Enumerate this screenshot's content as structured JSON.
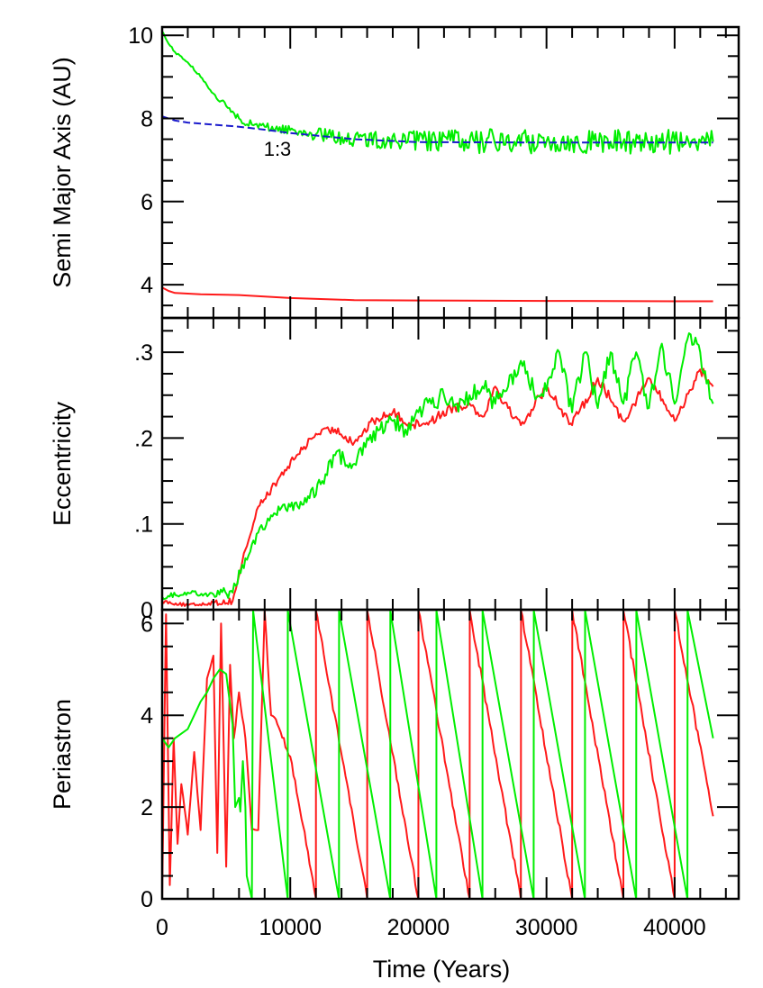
{
  "chart_data": [
    {
      "type": "line",
      "ylabel": "Semi Major Axis (AU)",
      "xlim": [
        0,
        45000
      ],
      "ylim": [
        3.2,
        10.2
      ],
      "yticks": [
        4,
        6,
        8,
        10
      ],
      "ytick_labels": [
        "4",
        "6",
        "8",
        "10"
      ],
      "annotations": [
        {
          "text": "1:3",
          "x": 9000,
          "y": 7.1,
          "color": "#1515cc"
        }
      ],
      "series": [
        {
          "color": "#ff1a1a",
          "style": "solid",
          "x": [
            0,
            500,
            1000,
            3000,
            6000,
            10000,
            15000,
            20000,
            30000,
            40000,
            43000
          ],
          "y": [
            3.93,
            3.85,
            3.8,
            3.77,
            3.75,
            3.68,
            3.63,
            3.62,
            3.61,
            3.6,
            3.6
          ]
        },
        {
          "color": "#00ee00",
          "style": "solid",
          "x": [
            0,
            500,
            1000,
            2000,
            3000,
            4000,
            5000,
            6000,
            7000,
            8000,
            10000,
            12000,
            15000,
            20000,
            25000,
            30000,
            35000,
            40000,
            43000
          ],
          "y": [
            10.1,
            9.8,
            9.6,
            9.35,
            9.0,
            8.6,
            8.3,
            8.0,
            7.85,
            7.8,
            7.72,
            7.62,
            7.5,
            7.46,
            7.45,
            7.45,
            7.44,
            7.44,
            7.44
          ],
          "noise": [
            0.06,
            0.3
          ]
        },
        {
          "color": "#1a1acc",
          "style": "dashed",
          "x": [
            0,
            1000,
            2000,
            4000,
            6000,
            8000,
            10000,
            15000,
            20000,
            30000,
            43000
          ],
          "y": [
            8.05,
            7.95,
            7.9,
            7.85,
            7.8,
            7.73,
            7.65,
            7.5,
            7.43,
            7.42,
            7.42
          ]
        }
      ]
    },
    {
      "type": "line",
      "ylabel": "Eccentricity",
      "xlim": [
        0,
        45000
      ],
      "ylim": [
        0,
        0.34
      ],
      "yticks": [
        0,
        0.1,
        0.2,
        0.3
      ],
      "ytick_labels": [
        "0",
        ".1",
        ".2",
        ".3"
      ],
      "series": [
        {
          "color": "#ff1a1a",
          "style": "solid",
          "x": [
            0,
            2000,
            4000,
            5500,
            6500,
            7500,
            9000,
            10500,
            12000,
            13500,
            15000,
            16500,
            18000,
            19500,
            21000,
            22500,
            24000,
            25000,
            26000,
            27000,
            28000,
            30000,
            32000,
            34000,
            36000,
            38000,
            40000,
            42000,
            43000
          ],
          "y": [
            0.01,
            0.005,
            0.008,
            0.01,
            0.07,
            0.12,
            0.15,
            0.18,
            0.205,
            0.21,
            0.195,
            0.22,
            0.23,
            0.215,
            0.22,
            0.235,
            0.24,
            0.225,
            0.26,
            0.235,
            0.215,
            0.26,
            0.215,
            0.27,
            0.22,
            0.27,
            0.22,
            0.28,
            0.26
          ],
          "noise": [
            0.004,
            0.006
          ]
        },
        {
          "color": "#00ee00",
          "style": "solid",
          "x": [
            0,
            2000,
            4000,
            5500,
            6500,
            7500,
            8500,
            10000,
            11500,
            12500,
            13500,
            15000,
            16000,
            17000,
            18000,
            19000,
            20000,
            21000,
            22000,
            23000,
            24000,
            25000,
            26000,
            27000,
            28000,
            29000,
            30000,
            31000,
            32000,
            33000,
            34000,
            35000,
            36000,
            37000,
            38000,
            39000,
            40000,
            41000,
            42000,
            43000
          ],
          "y": [
            0.015,
            0.02,
            0.018,
            0.02,
            0.06,
            0.09,
            0.11,
            0.12,
            0.13,
            0.15,
            0.18,
            0.17,
            0.2,
            0.21,
            0.22,
            0.21,
            0.23,
            0.24,
            0.25,
            0.24,
            0.25,
            0.26,
            0.24,
            0.26,
            0.29,
            0.255,
            0.255,
            0.3,
            0.23,
            0.3,
            0.235,
            0.3,
            0.24,
            0.3,
            0.235,
            0.31,
            0.24,
            0.315,
            0.3,
            0.24
          ],
          "noise": [
            0.006,
            0.012
          ]
        }
      ]
    },
    {
      "type": "line",
      "ylabel": "Periastron",
      "xlabel": "Time (Years)",
      "xlim": [
        0,
        45000
      ],
      "ylim": [
        0,
        6.3
      ],
      "yticks": [
        0,
        2,
        4,
        6
      ],
      "ytick_labels": [
        "0",
        "2",
        "4",
        "6"
      ],
      "xticks": [
        0,
        10000,
        20000,
        30000,
        40000
      ],
      "xtick_labels": [
        "0",
        "10000",
        "20000",
        "30000",
        "40000"
      ],
      "series": [
        {
          "color": "#ff1a1a",
          "style": "solid",
          "x": [
            0,
            300,
            600,
            900,
            1200,
            1500,
            2000,
            2500,
            3000,
            3500,
            4000,
            4300,
            4600,
            5000,
            5300,
            5600,
            6000,
            6500,
            7000,
            7500,
            8000,
            8500,
            9000,
            10000,
            11000,
            12000,
            12010,
            16000,
            16010,
            20000,
            20010,
            24000,
            24010,
            28000,
            28010,
            32000,
            32010,
            36000,
            36010,
            40000,
            40010,
            43000
          ],
          "y": [
            0,
            6.2,
            0.3,
            3.5,
            1.2,
            2.5,
            1.4,
            3.2,
            1.5,
            4.8,
            5.3,
            1.0,
            6.0,
            0.7,
            5.1,
            3.5,
            4.5,
            3.5,
            1.5,
            1.5,
            6.28,
            4.0,
            3.8,
            3.1,
            1.6,
            0,
            6.28,
            0,
            6.28,
            0,
            6.28,
            0,
            6.28,
            0,
            6.28,
            0,
            6.28,
            0,
            6.28,
            0,
            6.28,
            1.8
          ],
          "noise": [
            0.06,
            0.08
          ]
        },
        {
          "color": "#00ee00",
          "style": "solid",
          "x": [
            0,
            500,
            1000,
            1500,
            2000,
            2500,
            3000,
            3500,
            4000,
            4500,
            5000,
            5500,
            5700,
            6000,
            6100,
            6300,
            6500,
            6600,
            7000,
            7100,
            9800,
            9810,
            13800,
            13810,
            17800,
            17810,
            21400,
            21410,
            25000,
            25010,
            29000,
            29010,
            33000,
            33010,
            37000,
            37010,
            41000,
            41010,
            43000
          ],
          "y": [
            3.5,
            3.3,
            3.5,
            3.6,
            3.7,
            4.0,
            4.3,
            4.5,
            4.8,
            5.0,
            4.9,
            3.8,
            2.0,
            2.2,
            1.9,
            3.0,
            2.0,
            0.5,
            0,
            6.28,
            0,
            6.28,
            0,
            6.28,
            0,
            6.28,
            0,
            6.28,
            0,
            6.28,
            0,
            6.28,
            0,
            6.28,
            0,
            6.28,
            0,
            6.28,
            3.5
          ]
        }
      ]
    }
  ]
}
